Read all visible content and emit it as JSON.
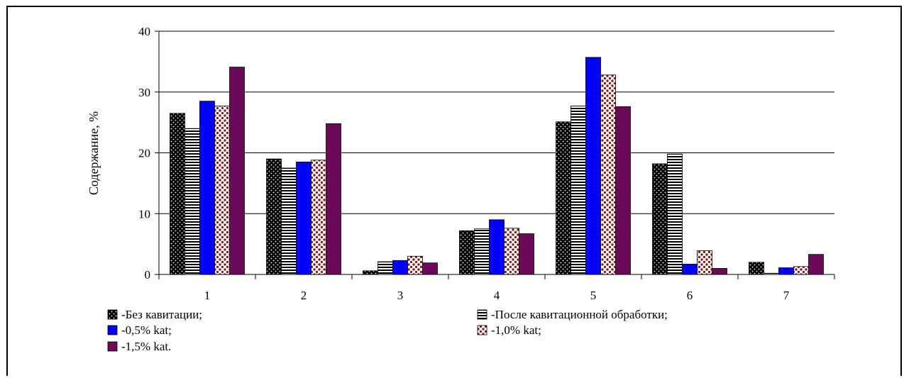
{
  "chart_data": {
    "type": "bar",
    "title": "",
    "xlabel": "",
    "ylabel": "Содержание, %",
    "ylim": [
      0,
      40
    ],
    "yticks": [
      0,
      10,
      20,
      30,
      40
    ],
    "grid": true,
    "legend_position": "bottom",
    "categories": [
      "1",
      "2",
      "3",
      "4",
      "5",
      "6",
      "7"
    ],
    "series": [
      {
        "name": "-Без кавитации;",
        "pattern": "black-dots",
        "color": "#000000",
        "values": [
          26.5,
          19.0,
          0.6,
          7.2,
          25.1,
          18.2,
          2.0
        ]
      },
      {
        "name": "-После кавитационной обработки;",
        "pattern": "horizontal-stripes",
        "color": "#000000",
        "values": [
          24.0,
          17.5,
          2.1,
          7.5,
          27.7,
          19.8,
          0.2
        ]
      },
      {
        "name": "-0,5% kat;",
        "pattern": "solid",
        "color": "#0000ff",
        "values": [
          28.5,
          18.5,
          2.3,
          9.0,
          35.7,
          1.7,
          1.1
        ]
      },
      {
        "name": "-1,0% kat;",
        "pattern": "red-dots",
        "color": "#8b1a1a",
        "values": [
          27.7,
          18.8,
          3.0,
          7.6,
          32.8,
          3.9,
          1.3
        ]
      },
      {
        "name": "-1,5% kat.",
        "pattern": "solid",
        "color": "#6b0a58",
        "values": [
          34.1,
          24.8,
          1.9,
          6.7,
          27.6,
          1.0,
          3.3
        ]
      }
    ]
  }
}
